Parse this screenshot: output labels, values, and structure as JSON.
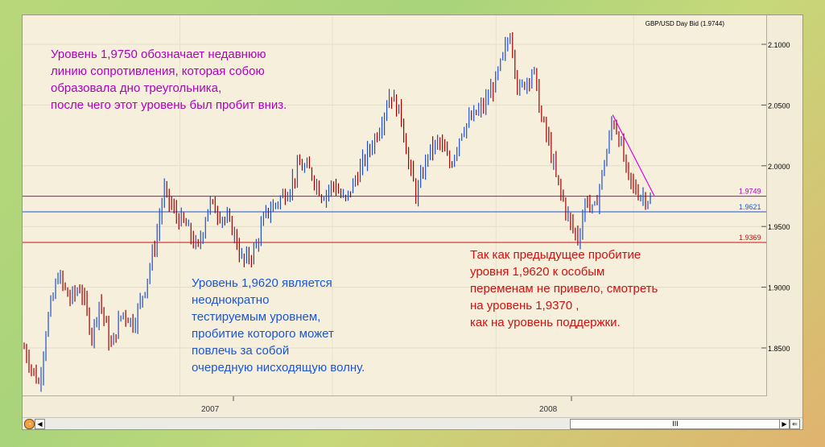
{
  "chart_data": {
    "type": "candlestick",
    "title": "GBP/USD Day Bid (1.9744)",
    "x_tick_labels": [
      "2007",
      "2008"
    ],
    "y_ticks": [
      "2.1000",
      "2.0500",
      "2.0000",
      "1.9500",
      "1.9000",
      "1.8500"
    ],
    "ylim": [
      1.8,
      2.12
    ],
    "grid": true,
    "horizontal_levels": [
      {
        "label": "1.9749",
        "value": 1.9749,
        "color": "#b000c0"
      },
      {
        "label": "1.9621",
        "value": 1.9621,
        "color": "#1b56d6"
      },
      {
        "label": "1.9369",
        "value": 1.9369,
        "color": "#d11010"
      }
    ],
    "trendline": {
      "from": {
        "t": 0.78,
        "v": 2.042
      },
      "to": {
        "t": 0.835,
        "v": 1.9755
      },
      "color": "#e000e0"
    },
    "price_path": [
      [
        0.0,
        1.85
      ],
      [
        0.012,
        1.83
      ],
      [
        0.02,
        1.82
      ],
      [
        0.03,
        1.87
      ],
      [
        0.045,
        1.91
      ],
      [
        0.06,
        1.89
      ],
      [
        0.075,
        1.9
      ],
      [
        0.09,
        1.86
      ],
      [
        0.1,
        1.89
      ],
      [
        0.115,
        1.85
      ],
      [
        0.13,
        1.88
      ],
      [
        0.145,
        1.87
      ],
      [
        0.16,
        1.9
      ],
      [
        0.175,
        1.94
      ],
      [
        0.185,
        1.98
      ],
      [
        0.2,
        1.96
      ],
      [
        0.215,
        1.95
      ],
      [
        0.23,
        1.93
      ],
      [
        0.245,
        1.97
      ],
      [
        0.26,
        1.96
      ],
      [
        0.275,
        1.95
      ],
      [
        0.29,
        1.92
      ],
      [
        0.305,
        1.93
      ],
      [
        0.32,
        1.96
      ],
      [
        0.335,
        1.97
      ],
      [
        0.35,
        1.98
      ],
      [
        0.365,
        2.0
      ],
      [
        0.38,
        1.995
      ],
      [
        0.395,
        1.975
      ],
      [
        0.41,
        1.985
      ],
      [
        0.425,
        1.97
      ],
      [
        0.44,
        1.99
      ],
      [
        0.455,
        2.01
      ],
      [
        0.47,
        2.03
      ],
      [
        0.485,
        2.06
      ],
      [
        0.5,
        2.04
      ],
      [
        0.51,
        2.0
      ],
      [
        0.52,
        1.975
      ],
      [
        0.535,
        2.01
      ],
      [
        0.55,
        2.02
      ],
      [
        0.565,
        2.0
      ],
      [
        0.58,
        2.03
      ],
      [
        0.595,
        2.04
      ],
      [
        0.61,
        2.05
      ],
      [
        0.625,
        2.07
      ],
      [
        0.635,
        2.09
      ],
      [
        0.645,
        2.11
      ],
      [
        0.655,
        2.06
      ],
      [
        0.665,
        2.07
      ],
      [
        0.675,
        2.08
      ],
      [
        0.685,
        2.04
      ],
      [
        0.695,
        2.02
      ],
      [
        0.705,
        1.99
      ],
      [
        0.715,
        1.97
      ],
      [
        0.725,
        1.95
      ],
      [
        0.735,
        1.94
      ],
      [
        0.745,
        1.975
      ],
      [
        0.755,
        1.96
      ],
      [
        0.765,
        1.99
      ],
      [
        0.775,
        2.02
      ],
      [
        0.78,
        2.04
      ],
      [
        0.79,
        2.02
      ],
      [
        0.8,
        1.99
      ],
      [
        0.81,
        1.98
      ],
      [
        0.82,
        1.975
      ],
      [
        0.83,
        1.972
      ]
    ]
  },
  "annotations": {
    "purple": "Уровень 1,9750 обозначает недавнюю\nлинию сопротивления, которая собою\nобразовала дно треугольника,\nпосле чего этот уровень был пробит вниз.",
    "blue": "Уровень 1,9620 является\nнеоднократно\nтестируемым уровнем,\nпробитие которого может\nповлечь за собой\nочередную нисходящую волну.",
    "red": "Так как предыдущее пробитие\nуровня 1,9620 к особым\nпеременам не привело, смотреть\nна уровень 1,9370 ,\nкак на уровень поддержки."
  },
  "scrollbar": {
    "left_arrow": "◀",
    "right_arrow": "▶",
    "thumb_grip": "III",
    "back_icon": "⇐"
  }
}
